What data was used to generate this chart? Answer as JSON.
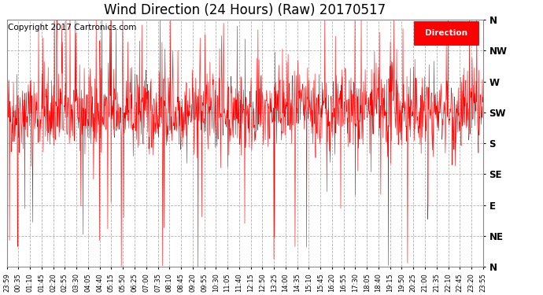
{
  "title": "Wind Direction (24 Hours) (Raw) 20170517",
  "copyright_text": "Copyright 2017 Cartronics.com",
  "legend_label": "Direction",
  "line_color": "#ff0000",
  "fig_bg_color": "#ffffff",
  "plot_bg_color": "#ffffff",
  "ytick_labels": [
    "N",
    "NW",
    "W",
    "SW",
    "S",
    "SE",
    "E",
    "NE",
    "N"
  ],
  "ytick_values": [
    360,
    315,
    270,
    225,
    180,
    135,
    90,
    45,
    0
  ],
  "ymin": 0,
  "ymax": 360,
  "title_fontsize": 12,
  "copyright_fontsize": 7.5,
  "axis_label_fontsize": 8.5,
  "xtick_labels": [
    "23:59",
    "00:35",
    "01:10",
    "01:45",
    "02:20",
    "02:55",
    "03:30",
    "04:05",
    "04:40",
    "05:15",
    "05:50",
    "06:25",
    "07:00",
    "07:35",
    "08:10",
    "08:45",
    "09:20",
    "09:55",
    "10:30",
    "11:05",
    "11:40",
    "12:15",
    "12:50",
    "13:25",
    "14:00",
    "14:35",
    "15:10",
    "15:45",
    "16:20",
    "16:55",
    "17:30",
    "18:05",
    "18:40",
    "19:15",
    "19:50",
    "20:25",
    "21:00",
    "21:35",
    "22:10",
    "22:45",
    "23:20",
    "23:55"
  ],
  "num_points": 1440,
  "base_direction": 225,
  "noise_std": 30,
  "seed": 42
}
